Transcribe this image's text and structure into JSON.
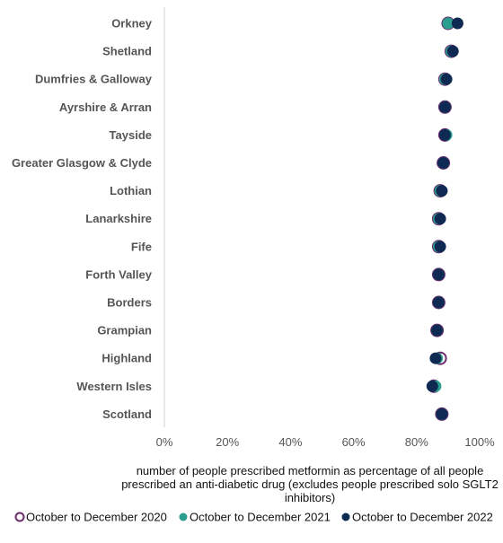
{
  "chart_data": {
    "type": "scatter",
    "orientation": "horizontal",
    "categories": [
      "Orkney",
      "Shetland",
      "Dumfries & Galloway",
      "Ayrshire & Arran",
      "Tayside",
      "Greater Glasgow & Clyde",
      "Lothian",
      "Lanarkshire",
      "Fife",
      "Forth Valley",
      "Borders",
      "Grampian",
      "Highland",
      "Western Isles",
      "Scotland"
    ],
    "series": [
      {
        "name": "October to December 2020",
        "color": "#6b2c6e",
        "marker": "hollow-circle",
        "values": [
          0.9,
          0.91,
          0.89,
          0.89,
          0.89,
          0.885,
          0.875,
          0.87,
          0.87,
          0.87,
          0.87,
          0.865,
          0.875,
          0.855,
          0.88
        ]
      },
      {
        "name": "October to December 2021",
        "color": "#2a9d8f",
        "marker": "filled-circle",
        "values": [
          0.9,
          0.91,
          0.89,
          0.89,
          0.895,
          0.885,
          0.875,
          0.87,
          0.87,
          0.87,
          0.87,
          0.865,
          0.865,
          0.86,
          0.88
        ]
      },
      {
        "name": "October to December 2022",
        "color": "#0e2a52",
        "marker": "filled-circle",
        "values": [
          0.93,
          0.915,
          0.895,
          0.89,
          0.89,
          0.885,
          0.88,
          0.875,
          0.875,
          0.87,
          0.87,
          0.865,
          0.86,
          0.85,
          0.88
        ]
      }
    ],
    "xlim": [
      0,
      1
    ],
    "xticks": [
      "0%",
      "20%",
      "40%",
      "60%",
      "80%",
      "100%"
    ],
    "xtick_values": [
      0,
      0.2,
      0.4,
      0.6,
      0.8,
      1.0
    ],
    "xlabel_lines": [
      "number of people prescribed metformin as percentage of all people",
      "prescribed an anti-diabetic drug (excludes people prescribed solo SGLT2",
      "inhibitors)"
    ],
    "ylabel": "",
    "title": "",
    "grid": false,
    "legend_position": "bottom"
  }
}
